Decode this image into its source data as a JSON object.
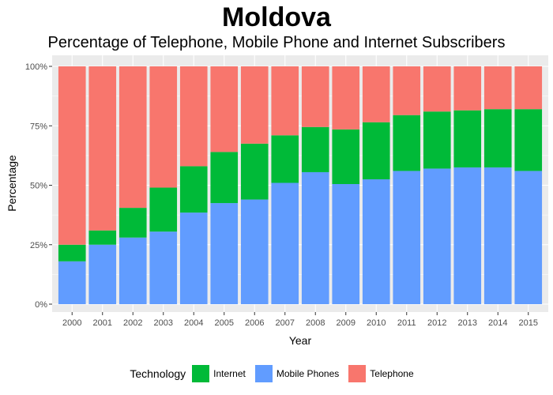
{
  "colors": {
    "internet": "#00BA38",
    "mobile": "#619CFF",
    "telephone": "#F8766D",
    "panel_bg": "#EBEBEB",
    "grid": "#FFFFFF"
  },
  "chart_data": {
    "type": "bar",
    "stacked": true,
    "title": "Moldova",
    "subtitle": "Percentage of Telephone, Mobile Phone and Internet Subscribers",
    "xlabel": "Year",
    "ylabel": "Percentage",
    "ylim": [
      0,
      1
    ],
    "yticks": [
      0,
      0.25,
      0.5,
      0.75,
      1.0
    ],
    "ytick_labels": [
      "0%",
      "25%",
      "50%",
      "75%",
      "100%"
    ],
    "grid": true,
    "legend_position": "bottom",
    "legend_title": "Technology",
    "categories": [
      "2000",
      "2001",
      "2002",
      "2003",
      "2004",
      "2005",
      "2006",
      "2007",
      "2008",
      "2009",
      "2010",
      "2011",
      "2012",
      "2013",
      "2014",
      "2015"
    ],
    "series": [
      {
        "name": "Mobile Phones",
        "color_key": "mobile",
        "values": [
          0.18,
          0.25,
          0.28,
          0.305,
          0.385,
          0.425,
          0.44,
          0.51,
          0.555,
          0.505,
          0.525,
          0.56,
          0.57,
          0.575,
          0.575,
          0.56
        ]
      },
      {
        "name": "Internet",
        "color_key": "internet",
        "values": [
          0.07,
          0.06,
          0.125,
          0.185,
          0.195,
          0.215,
          0.235,
          0.2,
          0.19,
          0.23,
          0.24,
          0.235,
          0.24,
          0.24,
          0.245,
          0.26
        ]
      },
      {
        "name": "Telephone",
        "color_key": "telephone",
        "values": [
          0.75,
          0.69,
          0.595,
          0.51,
          0.42,
          0.36,
          0.325,
          0.29,
          0.255,
          0.265,
          0.235,
          0.205,
          0.19,
          0.185,
          0.18,
          0.18
        ]
      }
    ],
    "legend_order": [
      "Internet",
      "Mobile Phones",
      "Telephone"
    ]
  }
}
